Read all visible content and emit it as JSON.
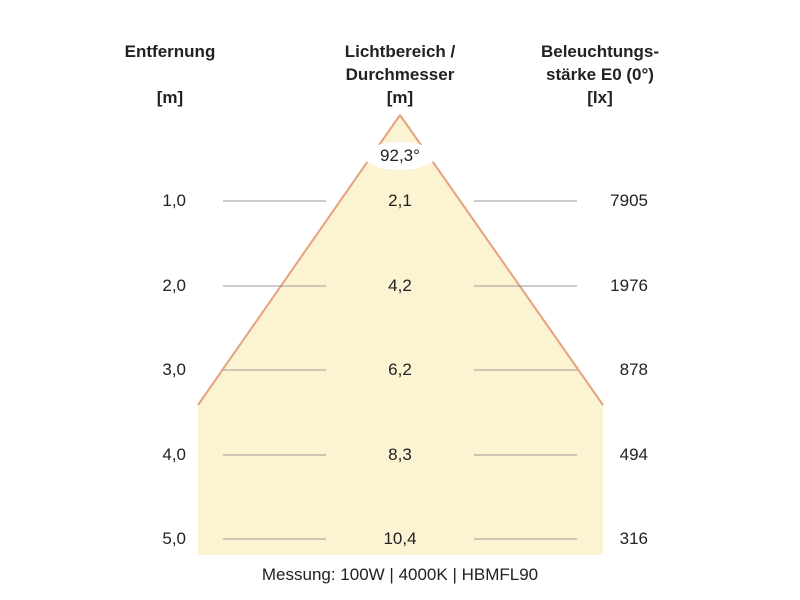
{
  "headers": {
    "distance": [
      "Entfernung",
      "",
      "[m]"
    ],
    "diameter": [
      "Lichtbereich /",
      "Durchmesser",
      "[m]"
    ],
    "illuminance": [
      "Beleuchtungs-",
      "stärke E0 (0°)",
      "[lx]"
    ]
  },
  "beam_angle": "92,3°",
  "rows": [
    {
      "distance": "1,0",
      "diameter": "2,1",
      "illuminance": "7905"
    },
    {
      "distance": "2,0",
      "diameter": "4,2",
      "illuminance": "1976"
    },
    {
      "distance": "3,0",
      "diameter": "6,2",
      "illuminance": "878"
    },
    {
      "distance": "4,0",
      "diameter": "8,3",
      "illuminance": "494"
    },
    {
      "distance": "5,0",
      "diameter": "10,4",
      "illuminance": "316"
    }
  ],
  "footer": "Messung: 100W | 4000K | HBMFL90",
  "colors": {
    "beam_fill": "#fcf3d2",
    "beam_edge": "#e4a27e",
    "row_line": "#9a9a9a"
  }
}
